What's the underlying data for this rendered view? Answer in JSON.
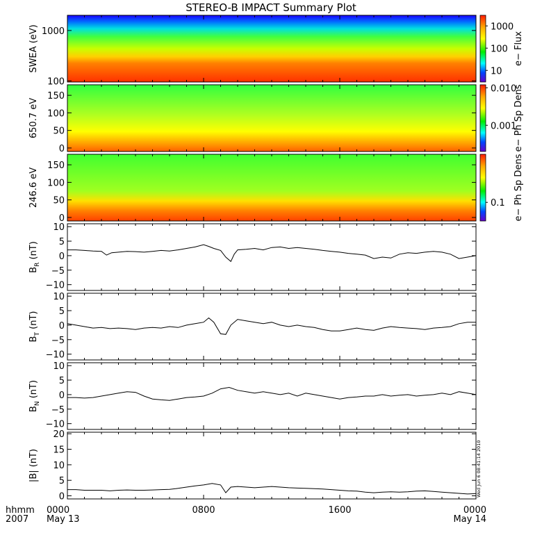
{
  "chart_data": {
    "type": "line",
    "title": "STEREO-B IMPACT Summary Plot",
    "time_axis": {
      "row1_label": "hhmm",
      "row2_label": "2007",
      "ticks": [
        {
          "hours": 0,
          "label": "0000",
          "sublabel": "May 13"
        },
        {
          "hours": 8,
          "label": "0800",
          "sublabel": ""
        },
        {
          "hours": 16,
          "label": "1600",
          "sublabel": ""
        },
        {
          "hours": 24,
          "label": "0000",
          "sublabel": "May 14"
        }
      ],
      "range_hours": [
        0,
        24
      ]
    },
    "side_stamp": "Wed Jun  6 08:41:14 2010",
    "panels": [
      {
        "id": "swea",
        "kind": "spectrogram",
        "ylabel": "SWEA (eV)",
        "yscale": "log",
        "ylim": [
          95,
          2000
        ],
        "yticks": [
          {
            "v": 100,
            "t": "100"
          },
          {
            "v": 1000,
            "t": "1000"
          }
        ],
        "colorbar": {
          "label": "e− Flux",
          "scale": "log",
          "range": [
            3,
            3000
          ],
          "ticks": [
            {
              "v": 10,
              "t": "10"
            },
            {
              "v": 100,
              "t": "100"
            },
            {
              "v": 1000,
              "t": "1000"
            }
          ]
        }
      },
      {
        "id": "pad650",
        "kind": "spectrogram",
        "ylabel": "650.7 eV",
        "yscale": "linear",
        "ylim": [
          -10,
          180
        ],
        "yticks": [
          {
            "v": 0,
            "t": "0"
          },
          {
            "v": 50,
            "t": "50"
          },
          {
            "v": 100,
            "t": "100"
          },
          {
            "v": 150,
            "t": "150"
          }
        ],
        "colorbar": {
          "label": "e− Ph Sp Dens",
          "scale": "log",
          "range": [
            0.0002,
            0.012
          ],
          "ticks": [
            {
              "v": 0.001,
              "t": "0.001"
            },
            {
              "v": 0.01,
              "t": "0.010"
            }
          ]
        }
      },
      {
        "id": "pad246",
        "kind": "spectrogram",
        "ylabel": "246.6 eV",
        "yscale": "linear",
        "ylim": [
          -10,
          180
        ],
        "yticks": [
          {
            "v": 0,
            "t": "0"
          },
          {
            "v": 50,
            "t": "50"
          },
          {
            "v": 100,
            "t": "100"
          },
          {
            "v": 150,
            "t": "150"
          }
        ],
        "colorbar": {
          "label": "e− Ph Sp Dens",
          "scale": "log",
          "range": [
            0.05,
            0.6
          ],
          "ticks": [
            {
              "v": 0.1,
              "t": "0.1"
            }
          ]
        }
      },
      {
        "id": "br",
        "kind": "line",
        "ylabel_main": "B",
        "ylabel_sub": "R",
        "ylabel_unit": " (nT)",
        "ylim": [
          -12,
          11
        ],
        "yticks": [
          {
            "v": -10,
            "t": "−10"
          },
          {
            "v": -5,
            "t": "−5"
          },
          {
            "v": 0,
            "t": "0"
          },
          {
            "v": 5,
            "t": "5"
          },
          {
            "v": 10,
            "t": "10"
          }
        ],
        "series": {
          "x": [
            0,
            0.5,
            1,
            1.5,
            2,
            2.3,
            2.6,
            3,
            3.5,
            4,
            4.5,
            5,
            5.5,
            6,
            6.5,
            7,
            7.5,
            8,
            8.3,
            8.6,
            9,
            9.3,
            9.6,
            9.8,
            10,
            10.5,
            11,
            11.5,
            12,
            12.5,
            13,
            13.5,
            14,
            14.5,
            15,
            15.5,
            16,
            16.5,
            17,
            17.5,
            18,
            18.5,
            19,
            19.5,
            20,
            20.5,
            21,
            21.5,
            22,
            22.5,
            23,
            23.5,
            24
          ],
          "y": [
            2.0,
            2.0,
            1.8,
            1.6,
            1.5,
            0.2,
            1.0,
            1.2,
            1.5,
            1.4,
            1.2,
            1.5,
            1.8,
            1.6,
            2.0,
            2.5,
            3.0,
            3.8,
            3.2,
            2.5,
            1.8,
            -0.5,
            -2.0,
            0.5,
            2.0,
            2.2,
            2.5,
            2.0,
            2.8,
            3.0,
            2.5,
            2.8,
            2.5,
            2.2,
            1.8,
            1.5,
            1.2,
            0.8,
            0.5,
            0.2,
            -1.0,
            -0.5,
            -0.8,
            0.5,
            1.0,
            0.8,
            1.2,
            1.5,
            1.2,
            0.5,
            -1.0,
            -0.5,
            0.0
          ]
        }
      },
      {
        "id": "bt",
        "kind": "line",
        "ylabel_main": "B",
        "ylabel_sub": "T",
        "ylabel_unit": " (nT)",
        "ylim": [
          -12,
          11
        ],
        "yticks": [
          {
            "v": -10,
            "t": "−10"
          },
          {
            "v": -5,
            "t": "−5"
          },
          {
            "v": 0,
            "t": "0"
          },
          {
            "v": 5,
            "t": "5"
          },
          {
            "v": 10,
            "t": "10"
          }
        ],
        "series": {
          "x": [
            0,
            0.5,
            1,
            1.5,
            2,
            2.5,
            3,
            3.5,
            4,
            4.5,
            5,
            5.5,
            6,
            6.5,
            7,
            7.5,
            8,
            8.3,
            8.6,
            9,
            9.3,
            9.6,
            10,
            10.5,
            11,
            11.5,
            12,
            12.5,
            13,
            13.5,
            14,
            14.5,
            15,
            15.5,
            16,
            16.5,
            17,
            17.5,
            18,
            18.5,
            19,
            19.5,
            20,
            20.5,
            21,
            21.5,
            22,
            22.5,
            23,
            23.5,
            24
          ],
          "y": [
            0.5,
            0.0,
            -0.5,
            -1.0,
            -0.8,
            -1.2,
            -1.0,
            -1.2,
            -1.5,
            -1.0,
            -0.8,
            -1.0,
            -0.5,
            -0.8,
            0.0,
            0.5,
            1.0,
            2.5,
            1.0,
            -3.0,
            -3.2,
            0.0,
            2.0,
            1.5,
            1.0,
            0.5,
            1.0,
            0.0,
            -0.5,
            0.0,
            -0.5,
            -0.8,
            -1.5,
            -2.0,
            -2.0,
            -1.5,
            -1.0,
            -1.5,
            -1.8,
            -1.0,
            -0.5,
            -0.8,
            -1.0,
            -1.2,
            -1.5,
            -1.0,
            -0.8,
            -0.5,
            0.5,
            1.0,
            1.0
          ]
        }
      },
      {
        "id": "bn",
        "kind": "line",
        "ylabel_main": "B",
        "ylabel_sub": "N",
        "ylabel_unit": " (nT)",
        "ylim": [
          -12,
          11
        ],
        "yticks": [
          {
            "v": -10,
            "t": "−10"
          },
          {
            "v": -5,
            "t": "−5"
          },
          {
            "v": 0,
            "t": "0"
          },
          {
            "v": 5,
            "t": "5"
          },
          {
            "v": 10,
            "t": "10"
          }
        ],
        "series": {
          "x": [
            0,
            0.5,
            1,
            1.5,
            2,
            2.5,
            3,
            3.5,
            4,
            4.5,
            5,
            5.5,
            6,
            6.5,
            7,
            7.5,
            8,
            8.5,
            9,
            9.5,
            10,
            10.5,
            11,
            11.5,
            12,
            12.5,
            13,
            13.5,
            14,
            14.5,
            15,
            15.5,
            16,
            16.5,
            17,
            17.5,
            18,
            18.5,
            19,
            19.5,
            20,
            20.5,
            21,
            21.5,
            22,
            22.5,
            23,
            23.5,
            24
          ],
          "y": [
            -1.0,
            -1.0,
            -1.2,
            -1.0,
            -0.5,
            0.0,
            0.5,
            1.0,
            0.8,
            -0.5,
            -1.5,
            -1.8,
            -2.0,
            -1.5,
            -1.0,
            -0.8,
            -0.5,
            0.5,
            2.0,
            2.5,
            1.5,
            1.0,
            0.5,
            1.0,
            0.5,
            0.0,
            0.5,
            -0.5,
            0.5,
            0.0,
            -0.5,
            -1.0,
            -1.5,
            -1.0,
            -0.8,
            -0.5,
            -0.5,
            0.0,
            -0.5,
            -0.2,
            0.0,
            -0.5,
            -0.2,
            0.0,
            0.5,
            0.0,
            1.0,
            0.5,
            0.0
          ]
        }
      },
      {
        "id": "bmag",
        "kind": "line",
        "ylabel_main": "|B| (nT)",
        "ylim": [
          -1,
          20.5
        ],
        "yticks": [
          {
            "v": 0,
            "t": "0"
          },
          {
            "v": 5,
            "t": "5"
          },
          {
            "v": 10,
            "t": "10"
          },
          {
            "v": 15,
            "t": "15"
          },
          {
            "v": 20,
            "t": "20"
          }
        ],
        "series": {
          "x": [
            0,
            0.5,
            1,
            1.5,
            2,
            2.5,
            3,
            3.5,
            4,
            4.5,
            5,
            5.5,
            6,
            6.5,
            7,
            7.5,
            8,
            8.5,
            9,
            9.3,
            9.6,
            10,
            10.5,
            11,
            11.5,
            12,
            12.5,
            13,
            13.5,
            14,
            14.5,
            15,
            15.5,
            16,
            16.5,
            17,
            17.5,
            18,
            18.5,
            19,
            19.5,
            20,
            20.5,
            21,
            21.5,
            22,
            22.5,
            23,
            23.5,
            24
          ],
          "y": [
            2.0,
            2.0,
            1.8,
            1.8,
            1.8,
            1.6,
            1.8,
            1.9,
            1.8,
            1.8,
            1.9,
            2.0,
            2.1,
            2.4,
            2.8,
            3.2,
            3.5,
            4.0,
            3.5,
            1.0,
            2.8,
            3.0,
            2.8,
            2.6,
            2.8,
            3.0,
            2.8,
            2.6,
            2.5,
            2.4,
            2.3,
            2.2,
            2.0,
            1.8,
            1.6,
            1.5,
            1.2,
            1.0,
            1.2,
            1.3,
            1.2,
            1.3,
            1.5,
            1.6,
            1.4,
            1.2,
            1.0,
            0.8,
            0.6,
            0.7
          ]
        }
      }
    ]
  }
}
